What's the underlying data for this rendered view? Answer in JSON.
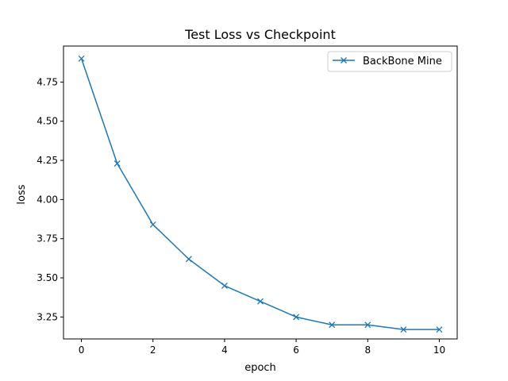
{
  "chart_data": {
    "type": "line",
    "title": "Test Loss vs Checkpoint",
    "xlabel": "epoch",
    "ylabel": "loss",
    "xlim": [
      -0.5,
      10.5
    ],
    "ylim": [
      3.11,
      4.98
    ],
    "xticks": [
      0,
      2,
      4,
      6,
      8,
      10
    ],
    "xtick_labels": [
      "0",
      "2",
      "4",
      "6",
      "8",
      "10"
    ],
    "yticks": [
      3.25,
      3.5,
      3.75,
      4.0,
      4.25,
      4.5,
      4.75
    ],
    "ytick_labels": [
      "3.25",
      "3.50",
      "3.75",
      "4.00",
      "4.25",
      "4.50",
      "4.75"
    ],
    "grid": false,
    "legend": "top-right",
    "series": [
      {
        "name": "BackBone Mine",
        "color": "#1f77b4",
        "marker": "x",
        "x": [
          0,
          1,
          2,
          3,
          4,
          5,
          6,
          7,
          8,
          9,
          10
        ],
        "y": [
          4.9,
          4.23,
          3.84,
          3.62,
          3.45,
          3.35,
          3.25,
          3.2,
          3.2,
          3.17,
          3.17
        ]
      }
    ]
  }
}
